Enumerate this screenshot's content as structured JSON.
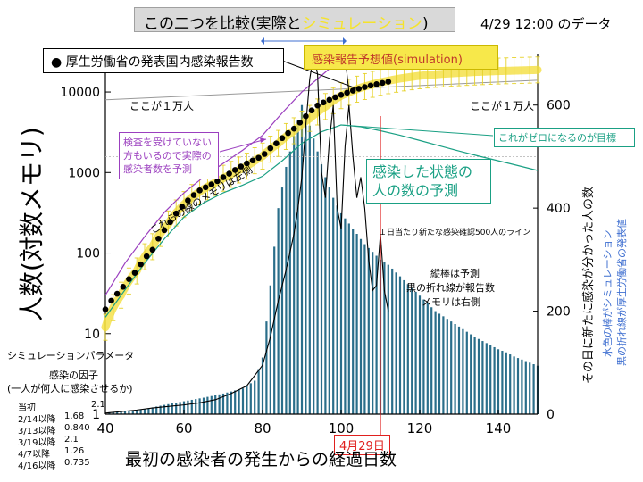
{
  "header": {
    "compare_prefix": "この二つを比較(実際と",
    "compare_highlight": "シミュレーション",
    "compare_suffix": ")",
    "date_label": "4/29 12:00 のデータ",
    "bullet_label": "● 厚生労働省の発表国内感染報告数",
    "sim_label": "感染報告予想値(simulation)"
  },
  "annotations": {
    "ten_thousand_left": "ここが１万人",
    "ten_thousand_right": "ここが１万人",
    "untested_note": "検査を受けていない方もいるので実際の感染者数を予測",
    "goal_note": "これがゼロになるのが目標",
    "infected_state": "感染した状態の人の数の予測",
    "left_scale_note": "これらの線のメモリは左側",
    "line_500": "１日当たり新たな感染確認500人のライン",
    "bar_note_1": "縦棒は予測",
    "bar_note_2": "黒の折れ線が報告数",
    "bar_note_3": "メモリは右側",
    "date_marker": "4月29日",
    "right_note_1": "水色の棒がシミュレーション",
    "right_note_2": "黒の折れ線が厚生労働省の発表値"
  },
  "params": {
    "title": "シミュレーションパラメータ",
    "factor_1": "感染の因子",
    "factor_2": "(一人が何人に感染させるか)",
    "rows": [
      {
        "label": "当初",
        "value": "2.1"
      },
      {
        "label": "2/14以降",
        "value": "1.68"
      },
      {
        "label": "3/13以降",
        "value": "0.840"
      },
      {
        "label": "3/19以降",
        "value": "2.1"
      },
      {
        "label": "4/7以降",
        "value": "1.26"
      },
      {
        "label": "4/16以降",
        "value": "0.735"
      }
    ]
  },
  "colors": {
    "bars": "#2a6e8a",
    "dots": "#000000",
    "sim": "#f4e04a",
    "error_bars": "#e6d22a",
    "purple": "#9b3fbf",
    "green": "#1aa084",
    "red": "#e0201e",
    "gray": "#999999",
    "blue_text": "#3f6fd0"
  },
  "chart_data": {
    "type": "line",
    "xlabel": "最初の感染者の発生からの経過日数",
    "ylabel_left": "人数(対数メモリ)",
    "ylabel_right": "その日に新たに感染が分かった人の数",
    "xlim": [
      40,
      150
    ],
    "x_ticks": [
      40,
      60,
      80,
      100,
      120,
      140
    ],
    "ylim_left": [
      1,
      30000
    ],
    "y_scale_left": "log",
    "y_ticks_left": [
      1,
      10,
      100,
      1000,
      10000
    ],
    "ylim_right": [
      0,
      700
    ],
    "y_ticks_right": [
      0,
      200,
      400,
      600
    ],
    "grid": false,
    "series": [
      {
        "name": "厚生労働省の発表国内感染報告数",
        "style": "dots",
        "x": [
          40,
          44,
          48,
          52,
          56,
          60,
          64,
          68,
          72,
          76,
          80,
          84,
          88,
          90,
          92,
          94,
          96,
          98,
          100,
          102,
          104,
          106,
          108,
          110,
          112
        ],
        "y": [
          20,
          35,
          60,
          110,
          220,
          400,
          600,
          750,
          1000,
          1300,
          1600,
          2400,
          3500,
          4400,
          5600,
          6800,
          7600,
          8400,
          9200,
          10000,
          10800,
          11500,
          12200,
          12800,
          13400
        ]
      },
      {
        "name": "感染報告予想値(simulation)",
        "style": "band",
        "x": [
          40,
          44,
          48,
          52,
          56,
          60,
          64,
          68,
          72,
          76,
          80,
          84,
          88,
          92,
          96,
          100,
          105,
          110,
          115,
          120,
          125,
          130,
          135,
          140,
          145,
          150
        ],
        "y": [
          12,
          30,
          60,
          120,
          230,
          400,
          580,
          750,
          950,
          1200,
          1600,
          2300,
          3300,
          4700,
          6600,
          9000,
          11300,
          13200,
          14700,
          15900,
          16700,
          17300,
          17800,
          18200,
          18500,
          18800
        ]
      },
      {
        "name": "purple",
        "style": "line",
        "x": [
          40,
          45,
          50,
          55,
          60,
          65,
          70,
          75,
          80,
          85,
          90,
          95,
          100
        ],
        "y": [
          30,
          75,
          160,
          320,
          560,
          880,
          1300,
          1900,
          2900,
          5500,
          10000,
          16000,
          26000
        ]
      },
      {
        "name": "green",
        "style": "line",
        "x": [
          40,
          45,
          50,
          55,
          60,
          65,
          70,
          75,
          80,
          85,
          90,
          95,
          100,
          105,
          110,
          115,
          120,
          125,
          130,
          135,
          140,
          145,
          150
        ],
        "y": [
          16,
          35,
          75,
          150,
          280,
          420,
          560,
          700,
          900,
          1400,
          2300,
          3200,
          3900,
          3700,
          3300,
          2900,
          2500,
          2150,
          1850,
          1600,
          1400,
          1220,
          1060
        ]
      },
      {
        "name": "gray",
        "style": "line",
        "x": [
          40,
          150
        ],
        "y": [
          8000,
          14000
        ]
      },
      {
        "name": "その日に新たに感染が分かった人の数",
        "style": "line",
        "axis": "right",
        "x": [
          40,
          44,
          48,
          52,
          56,
          60,
          64,
          68,
          72,
          76,
          80,
          82,
          84,
          86,
          88,
          89,
          90,
          91,
          92,
          93,
          94,
          95,
          96,
          97,
          98,
          99,
          100,
          101,
          102,
          103,
          104,
          105,
          106,
          107,
          108,
          109,
          110,
          111,
          112
        ],
        "y": [
          2,
          5,
          8,
          12,
          15,
          18,
          22,
          28,
          40,
          55,
          95,
          150,
          220,
          280,
          350,
          400,
          460,
          560,
          650,
          700,
          660,
          470,
          420,
          530,
          600,
          400,
          360,
          520,
          600,
          500,
          420,
          460,
          400,
          300,
          240,
          250,
          350,
          240,
          200
        ]
      },
      {
        "name": "シミュレーション",
        "style": "bars",
        "axis": "right",
        "x": [
          40,
          45,
          50,
          55,
          60,
          65,
          70,
          75,
          78,
          80,
          82,
          84,
          86,
          88,
          90,
          92,
          94,
          96,
          98,
          100,
          102,
          104,
          106,
          108,
          110,
          112,
          114,
          116,
          118,
          120,
          122,
          124,
          126,
          128,
          130,
          132,
          134,
          136,
          138,
          140,
          142,
          144,
          146,
          148,
          150
        ],
        "y": [
          3,
          6,
          10,
          18,
          25,
          32,
          40,
          50,
          65,
          110,
          250,
          400,
          480,
          540,
          600,
          560,
          510,
          460,
          420,
          390,
          370,
          350,
          330,
          315,
          300,
          290,
          275,
          260,
          245,
          230,
          215,
          200,
          190,
          180,
          170,
          160,
          150,
          142,
          134,
          126,
          120,
          112,
          106,
          100,
          94
        ]
      }
    ],
    "reference_lines": [
      {
        "label": "１日当たり新たな感染確認500人のライン",
        "axis": "right",
        "y": 500
      },
      {
        "label": "4月29日",
        "axis": "x",
        "x": 110
      }
    ]
  }
}
